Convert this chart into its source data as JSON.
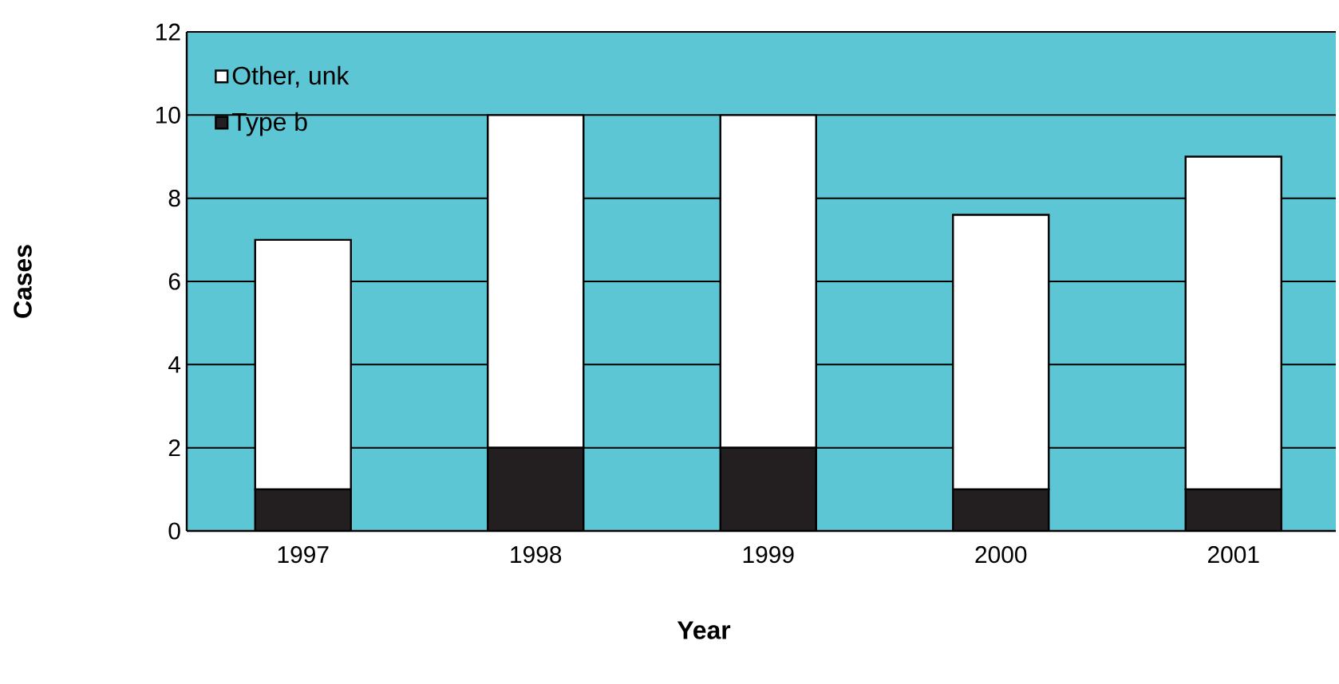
{
  "chart_data": {
    "type": "bar",
    "stacked": true,
    "xlabel": "Year",
    "ylabel": "Cases",
    "categories": [
      "1997",
      "1998",
      "1999",
      "2000",
      "2001"
    ],
    "series": [
      {
        "name": "Type b",
        "color": "#231f20",
        "values": [
          1,
          2,
          2,
          1,
          1
        ]
      },
      {
        "name": "Other, unk",
        "color": "#ffffff",
        "values": [
          6,
          8,
          8,
          6.6,
          8
        ]
      }
    ],
    "ylim": [
      0,
      12
    ],
    "yticks": [
      0,
      2,
      4,
      6,
      8,
      10,
      12
    ],
    "grid": "y",
    "legend": "top left"
  }
}
